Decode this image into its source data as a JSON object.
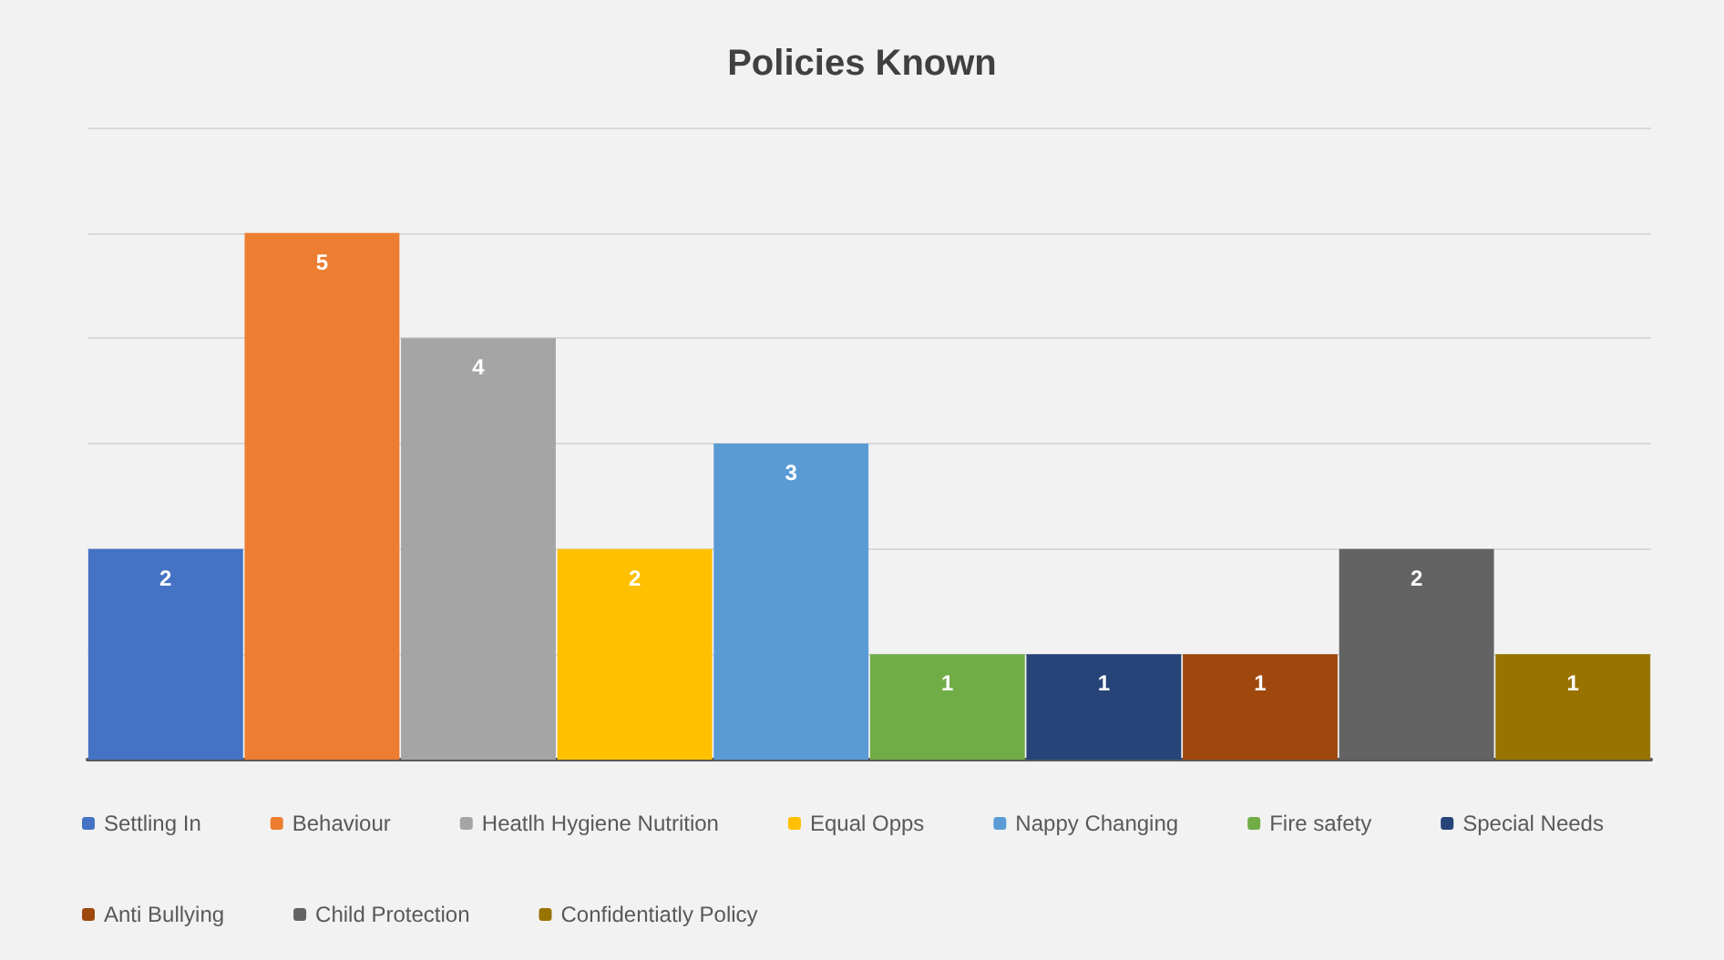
{
  "chart_data": {
    "type": "bar",
    "title": "Policies Known",
    "categories": [
      null,
      null,
      null,
      null,
      null,
      null,
      null,
      null,
      null,
      null
    ],
    "series": [
      {
        "name": "Settling In",
        "color": "#4472c4",
        "values": [
          2,
          null,
          null,
          null,
          null,
          null,
          null,
          null,
          null,
          null
        ]
      },
      {
        "name": "Behaviour",
        "color": "#ed7d31",
        "values": [
          null,
          5,
          null,
          null,
          null,
          null,
          null,
          null,
          null,
          null
        ]
      },
      {
        "name": "Heatlh Hygiene Nutrition",
        "color": "#a5a5a5",
        "values": [
          null,
          null,
          4,
          null,
          null,
          null,
          null,
          null,
          null,
          null
        ]
      },
      {
        "name": "Equal Opps",
        "color": "#ffc000",
        "values": [
          null,
          null,
          null,
          2,
          null,
          null,
          null,
          null,
          null,
          null
        ]
      },
      {
        "name": "Nappy Changing",
        "color": "#5b9bd5",
        "values": [
          null,
          null,
          null,
          null,
          3,
          null,
          null,
          null,
          null,
          null
        ]
      },
      {
        "name": "Fire safety",
        "color": "#70ad47",
        "values": [
          null,
          null,
          null,
          null,
          null,
          1,
          null,
          null,
          null,
          null
        ]
      },
      {
        "name": "Special Needs",
        "color": "#264478",
        "values": [
          null,
          null,
          null,
          null,
          null,
          null,
          1,
          null,
          null,
          null
        ]
      },
      {
        "name": "Anti Bullying",
        "color": "#9e480e",
        "values": [
          null,
          null,
          null,
          null,
          null,
          null,
          null,
          1,
          null,
          null
        ]
      },
      {
        "name": "Child Protection",
        "color": "#636363",
        "values": [
          null,
          null,
          null,
          null,
          null,
          null,
          null,
          null,
          2,
          null
        ]
      },
      {
        "name": "Confidentiatly Policy",
        "color": "#997300",
        "values": [
          null,
          null,
          null,
          null,
          null,
          null,
          null,
          null,
          null,
          1
        ]
      }
    ],
    "ylim": [
      0,
      6
    ],
    "yticks": [
      {
        "value": 0,
        "label": null
      },
      {
        "value": 1,
        "label": null
      },
      {
        "value": 2,
        "label": null
      },
      {
        "value": 3,
        "label": null
      },
      {
        "value": 4,
        "label": null
      },
      {
        "value": 5,
        "label": null
      },
      {
        "value": 6,
        "label": null
      }
    ],
    "stacked": true,
    "grid": "y",
    "legend": "bottom",
    "data_labels": true
  }
}
